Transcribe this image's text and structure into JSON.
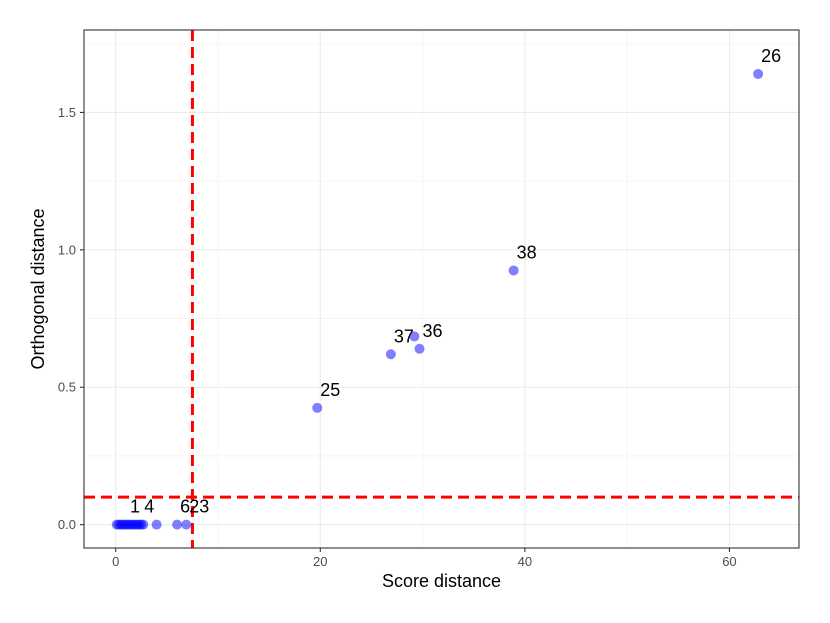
{
  "chart_data": {
    "type": "scatter",
    "title": "",
    "xlabel": "Score distance",
    "ylabel": "Orthogonal distance",
    "xlim": [
      -3.1,
      66.8
    ],
    "ylim": [
      -0.085,
      1.8
    ],
    "x_ticks": [
      0,
      20,
      40,
      60
    ],
    "y_ticks": [
      0.0,
      0.5,
      1.0,
      1.5
    ],
    "x_tick_labels": [
      "0",
      "20",
      "40",
      "60"
    ],
    "y_tick_labels": [
      "0.0",
      "0.5",
      "1.0",
      "1.5"
    ],
    "grid": true,
    "point_color": "#0000ff",
    "point_alpha": 0.5,
    "cutoff_color": "#ff0000",
    "cutoffs": {
      "x": 7.5,
      "y": 0.1
    },
    "points": [
      {
        "x": 0.1,
        "y": 0.0
      },
      {
        "x": 0.3,
        "y": 0.0
      },
      {
        "x": 0.5,
        "y": 0.0
      },
      {
        "x": 0.7,
        "y": 0.0
      },
      {
        "x": 0.9,
        "y": 0.0
      },
      {
        "x": 1.1,
        "y": 0.0,
        "label": "1"
      },
      {
        "x": 1.3,
        "y": 0.0
      },
      {
        "x": 1.5,
        "y": 0.0
      },
      {
        "x": 1.7,
        "y": 0.0
      },
      {
        "x": 1.9,
        "y": 0.0
      },
      {
        "x": 2.1,
        "y": 0.0
      },
      {
        "x": 2.3,
        "y": 0.0
      },
      {
        "x": 2.5,
        "y": 0.0,
        "label": "4"
      },
      {
        "x": 2.7,
        "y": 0.0
      },
      {
        "x": 4.0,
        "y": 0.0
      },
      {
        "x": 6.0,
        "y": 0.0,
        "label": "6"
      },
      {
        "x": 6.9,
        "y": 0.0,
        "label": "23"
      },
      {
        "x": 19.7,
        "y": 0.425,
        "label": "25"
      },
      {
        "x": 26.9,
        "y": 0.62,
        "label": "37"
      },
      {
        "x": 29.2,
        "y": 0.685
      },
      {
        "x": 29.7,
        "y": 0.64,
        "label": "36"
      },
      {
        "x": 38.9,
        "y": 0.925,
        "label": "38"
      },
      {
        "x": 62.8,
        "y": 1.64,
        "label": "26"
      }
    ]
  }
}
